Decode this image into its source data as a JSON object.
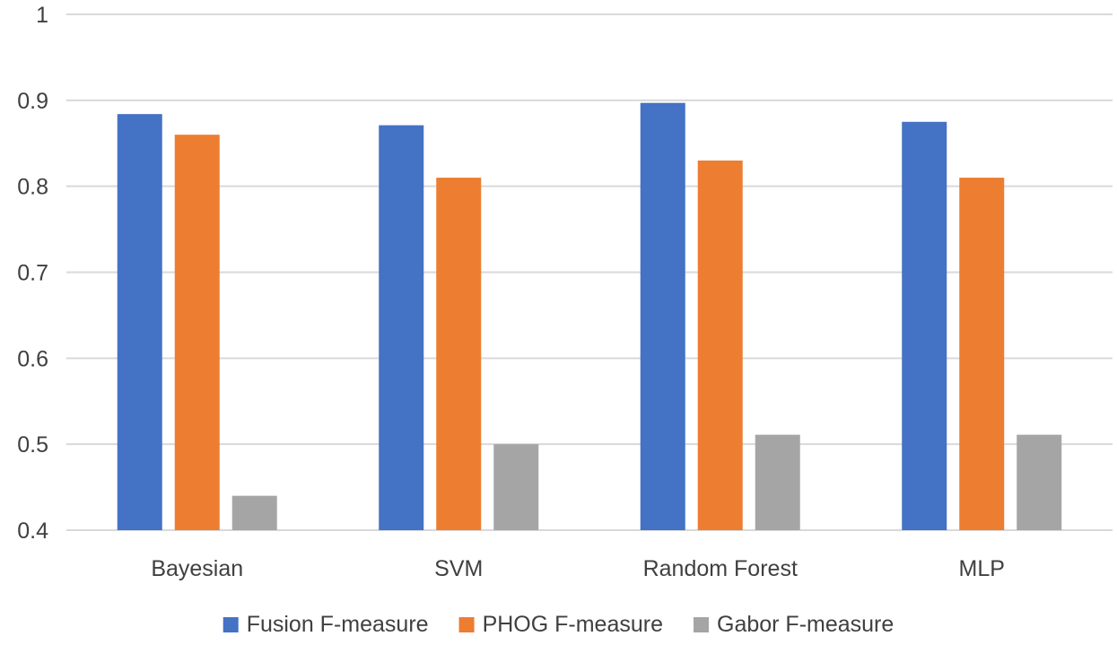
{
  "chart_data": {
    "type": "bar",
    "title": "",
    "xlabel": "",
    "ylabel": "",
    "categories": [
      "Bayesian",
      "SVM",
      "Random Forest",
      "MLP"
    ],
    "ylim": [
      0.4,
      1
    ],
    "yticks": [
      "0.4",
      "0.5",
      "0.6",
      "0.7",
      "0.8",
      "0.9",
      "1"
    ],
    "grid": true,
    "legend_position": "bottom",
    "series": [
      {
        "name": "Fusion F-measure",
        "color": "#4472c4",
        "values": [
          0.884,
          0.871,
          0.897,
          0.875
        ]
      },
      {
        "name": "PHOG F-measure",
        "color": "#ed7d31",
        "values": [
          0.86,
          0.81,
          0.83,
          0.81
        ]
      },
      {
        "name": "Gabor F-measure",
        "color": "#a5a5a5",
        "values": [
          0.44,
          0.5,
          0.511,
          0.511
        ]
      }
    ]
  }
}
